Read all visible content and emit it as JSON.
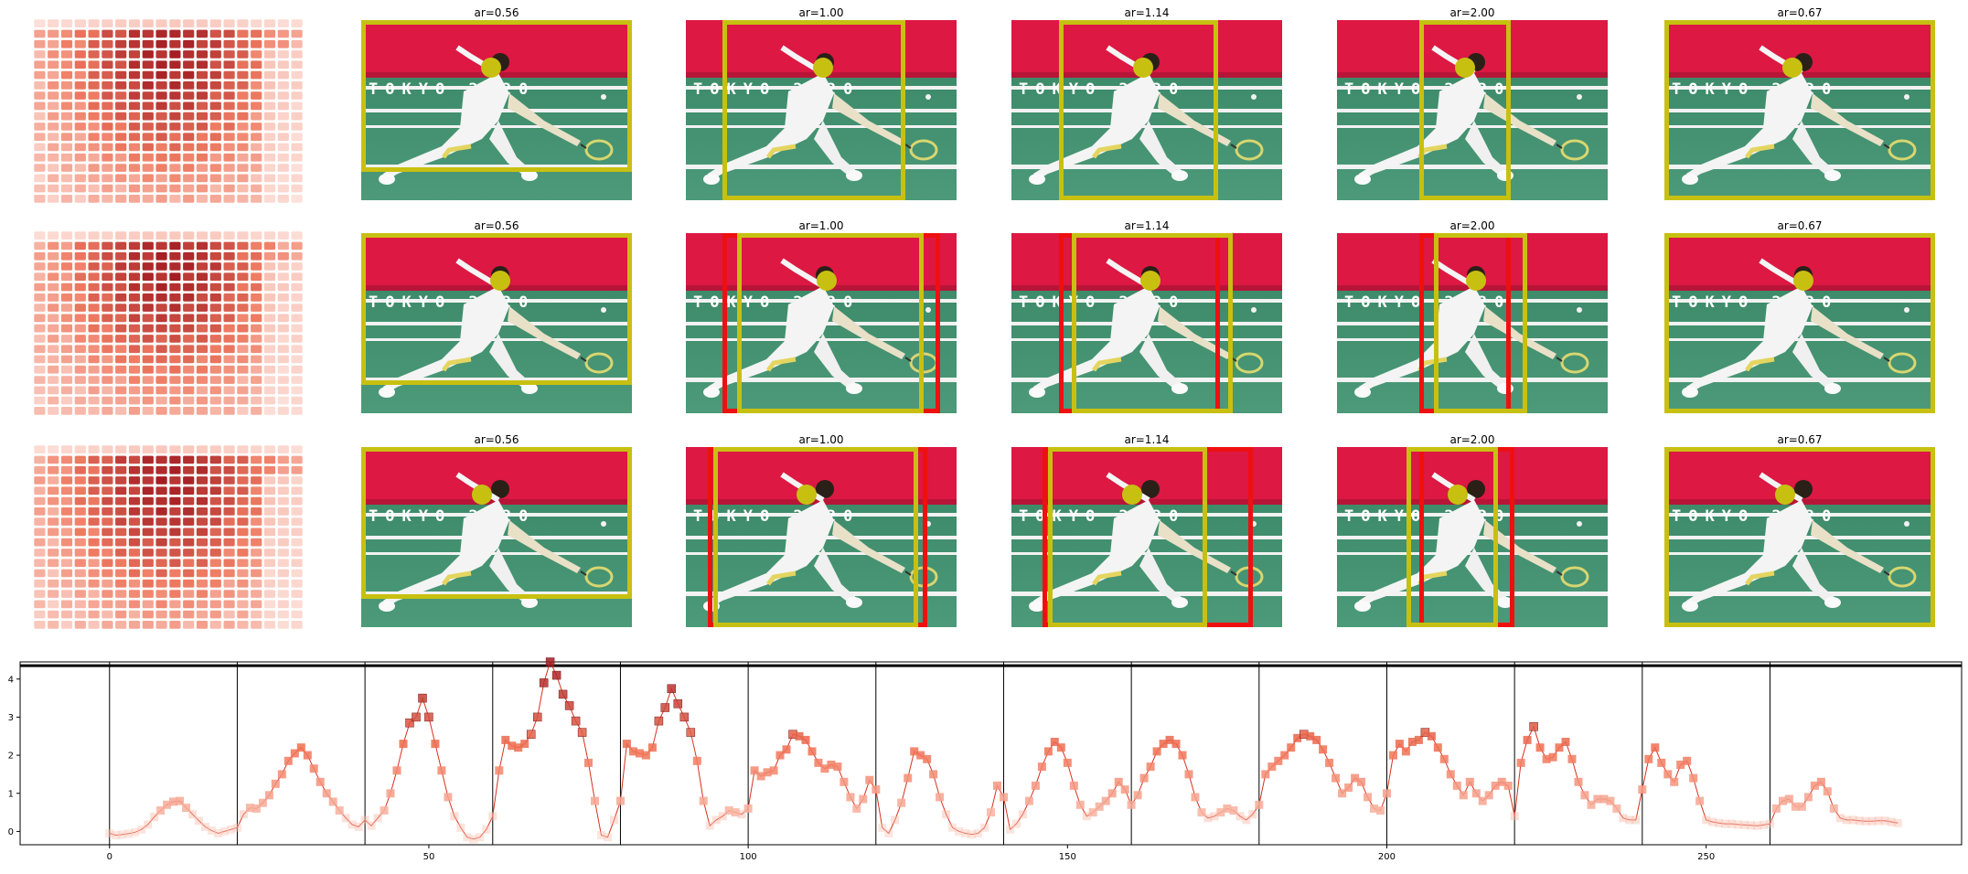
{
  "rows": [
    {
      "row": 1,
      "panels": [
        {
          "title": "ar=0.56"
        },
        {
          "title": "ar=1.00"
        },
        {
          "title": "ar=1.14"
        },
        {
          "title": "ar=2.00"
        },
        {
          "title": "ar=0.67"
        }
      ]
    },
    {
      "row": 2,
      "panels": [
        {
          "title": "ar=0.56"
        },
        {
          "title": "ar=1.00"
        },
        {
          "title": "ar=1.14"
        },
        {
          "title": "ar=2.00"
        },
        {
          "title": "ar=0.67"
        }
      ]
    },
    {
      "row": 3,
      "panels": [
        {
          "title": "ar=0.56"
        },
        {
          "title": "ar=1.00"
        },
        {
          "title": "ar=1.14"
        },
        {
          "title": "ar=2.00"
        },
        {
          "title": "ar=0.67"
        }
      ]
    }
  ],
  "photo": {
    "banner_text": "TOKYO 2020"
  },
  "colors": {
    "box_yellow": "#c8c011",
    "box_red": "#ee1010",
    "series_line": "#d9301e",
    "heat_dark": "#a31c22",
    "heat_light": "#fde5df"
  },
  "chart_data": {
    "type": "line",
    "title": "",
    "xlabel": "",
    "ylabel": "",
    "xlim": [
      -14,
      290
    ],
    "ylim": [
      -0.35,
      4.45
    ],
    "xticks": [
      "0",
      "50",
      "100",
      "150",
      "200",
      "250"
    ],
    "yticks": [
      "0",
      "1",
      "2",
      "3",
      "4"
    ],
    "hline_y": 4.35,
    "vlines_x": [
      0,
      20,
      40,
      60,
      80,
      100,
      120,
      140,
      160,
      180,
      200,
      220,
      240,
      260
    ],
    "legend": "none",
    "grid": false,
    "series": [
      {
        "points": [
          [
            0,
            -0.05
          ],
          [
            1,
            -0.1
          ],
          [
            2,
            -0.08
          ],
          [
            3,
            -0.06
          ],
          [
            4,
            -0.02
          ],
          [
            5,
            0.05
          ],
          [
            6,
            0.18
          ],
          [
            7,
            0.38
          ],
          [
            8,
            0.55
          ],
          [
            9,
            0.7
          ],
          [
            10,
            0.78
          ],
          [
            11,
            0.8
          ],
          [
            12,
            0.62
          ],
          [
            13,
            0.45
          ],
          [
            14,
            0.28
          ],
          [
            15,
            0.12
          ],
          [
            16,
            0.02
          ],
          [
            17,
            -0.05
          ],
          [
            18,
            0.0
          ],
          [
            19,
            0.05
          ],
          [
            20,
            0.1
          ],
          [
            21,
            0.45
          ],
          [
            22,
            0.62
          ],
          [
            23,
            0.6
          ],
          [
            24,
            0.75
          ],
          [
            25,
            0.95
          ],
          [
            26,
            1.25
          ],
          [
            27,
            1.5
          ],
          [
            28,
            1.85
          ],
          [
            29,
            2.05
          ],
          [
            30,
            2.2
          ],
          [
            31,
            2.0
          ],
          [
            32,
            1.65
          ],
          [
            33,
            1.3
          ],
          [
            34,
            1.0
          ],
          [
            35,
            0.78
          ],
          [
            36,
            0.55
          ],
          [
            37,
            0.35
          ],
          [
            38,
            0.18
          ],
          [
            39,
            0.12
          ],
          [
            40,
            0.3
          ],
          [
            41,
            0.15
          ],
          [
            42,
            0.35
          ],
          [
            43,
            0.55
          ],
          [
            44,
            1.0
          ],
          [
            45,
            1.6
          ],
          [
            46,
            2.3
          ],
          [
            47,
            2.85
          ],
          [
            48,
            3.0
          ],
          [
            49,
            3.5
          ],
          [
            50,
            3.0
          ],
          [
            51,
            2.3
          ],
          [
            52,
            1.6
          ],
          [
            53,
            0.9
          ],
          [
            54,
            0.4
          ],
          [
            55,
            0.1
          ],
          [
            56,
            -0.15
          ],
          [
            57,
            -0.2
          ],
          [
            58,
            -0.15
          ],
          [
            59,
            0.05
          ],
          [
            60,
            0.4
          ],
          [
            61,
            1.6
          ],
          [
            62,
            2.4
          ],
          [
            63,
            2.25
          ],
          [
            64,
            2.2
          ],
          [
            65,
            2.3
          ],
          [
            66,
            2.55
          ],
          [
            67,
            3.0
          ],
          [
            68,
            3.9
          ],
          [
            69,
            4.45
          ],
          [
            70,
            4.1
          ],
          [
            71,
            3.6
          ],
          [
            72,
            3.3
          ],
          [
            73,
            2.9
          ],
          [
            74,
            2.6
          ],
          [
            75,
            1.8
          ],
          [
            76,
            0.8
          ],
          [
            77,
            -0.1
          ],
          [
            78,
            -0.15
          ],
          [
            79,
            0.3
          ],
          [
            80,
            0.8
          ],
          [
            81,
            2.3
          ],
          [
            82,
            2.1
          ],
          [
            83,
            2.05
          ],
          [
            84,
            2.0
          ],
          [
            85,
            2.2
          ],
          [
            86,
            2.9
          ],
          [
            87,
            3.25
          ],
          [
            88,
            3.75
          ],
          [
            89,
            3.35
          ],
          [
            90,
            3.0
          ],
          [
            91,
            2.6
          ],
          [
            92,
            1.85
          ],
          [
            93,
            0.8
          ],
          [
            94,
            0.15
          ],
          [
            95,
            0.3
          ],
          [
            96,
            0.4
          ],
          [
            97,
            0.55
          ],
          [
            98,
            0.5
          ],
          [
            99,
            0.45
          ],
          [
            100,
            0.6
          ],
          [
            101,
            1.6
          ],
          [
            102,
            1.45
          ],
          [
            103,
            1.55
          ],
          [
            104,
            1.6
          ],
          [
            105,
            2.0
          ],
          [
            106,
            2.15
          ],
          [
            107,
            2.55
          ],
          [
            108,
            2.5
          ],
          [
            109,
            2.4
          ],
          [
            110,
            2.1
          ],
          [
            111,
            1.8
          ],
          [
            112,
            1.65
          ],
          [
            113,
            1.75
          ],
          [
            114,
            1.7
          ],
          [
            115,
            1.3
          ],
          [
            116,
            0.9
          ],
          [
            117,
            0.6
          ],
          [
            118,
            0.85
          ],
          [
            119,
            1.35
          ],
          [
            120,
            1.1
          ],
          [
            121,
            0.1
          ],
          [
            122,
            -0.05
          ],
          [
            123,
            0.3
          ],
          [
            124,
            0.75
          ],
          [
            125,
            1.4
          ],
          [
            126,
            2.1
          ],
          [
            127,
            2.0
          ],
          [
            128,
            1.9
          ],
          [
            129,
            1.5
          ],
          [
            130,
            0.9
          ],
          [
            131,
            0.45
          ],
          [
            132,
            0.1
          ],
          [
            133,
            0.0
          ],
          [
            134,
            -0.05
          ],
          [
            135,
            -0.08
          ],
          [
            136,
            -0.05
          ],
          [
            137,
            0.1
          ],
          [
            138,
            0.5
          ],
          [
            139,
            1.2
          ],
          [
            140,
            0.9
          ],
          [
            141,
            0.05
          ],
          [
            142,
            0.2
          ],
          [
            143,
            0.45
          ],
          [
            144,
            0.8
          ],
          [
            145,
            1.2
          ],
          [
            146,
            1.7
          ],
          [
            147,
            2.1
          ],
          [
            148,
            2.35
          ],
          [
            149,
            2.2
          ],
          [
            150,
            1.8
          ],
          [
            151,
            1.2
          ],
          [
            152,
            0.7
          ],
          [
            153,
            0.4
          ],
          [
            154,
            0.5
          ],
          [
            155,
            0.65
          ],
          [
            156,
            0.8
          ],
          [
            157,
            1.0
          ],
          [
            158,
            1.3
          ],
          [
            159,
            1.1
          ],
          [
            160,
            0.7
          ],
          [
            161,
            0.95
          ],
          [
            162,
            1.4
          ],
          [
            163,
            1.7
          ],
          [
            164,
            2.1
          ],
          [
            165,
            2.3
          ],
          [
            166,
            2.4
          ],
          [
            167,
            2.3
          ],
          [
            168,
            2.0
          ],
          [
            169,
            1.5
          ],
          [
            170,
            0.9
          ],
          [
            171,
            0.5
          ],
          [
            172,
            0.35
          ],
          [
            173,
            0.4
          ],
          [
            174,
            0.5
          ],
          [
            175,
            0.6
          ],
          [
            176,
            0.55
          ],
          [
            177,
            0.4
          ],
          [
            178,
            0.3
          ],
          [
            179,
            0.45
          ],
          [
            180,
            0.7
          ],
          [
            181,
            1.5
          ],
          [
            182,
            1.7
          ],
          [
            183,
            1.85
          ],
          [
            184,
            2.0
          ],
          [
            185,
            2.2
          ],
          [
            186,
            2.45
          ],
          [
            187,
            2.55
          ],
          [
            188,
            2.5
          ],
          [
            189,
            2.4
          ],
          [
            190,
            2.15
          ],
          [
            191,
            1.8
          ],
          [
            192,
            1.4
          ],
          [
            193,
            1.0
          ],
          [
            194,
            1.15
          ],
          [
            195,
            1.4
          ],
          [
            196,
            1.3
          ],
          [
            197,
            0.9
          ],
          [
            198,
            0.6
          ],
          [
            199,
            0.55
          ],
          [
            200,
            1.0
          ],
          [
            201,
            2.0
          ],
          [
            202,
            2.3
          ],
          [
            203,
            2.1
          ],
          [
            204,
            2.35
          ],
          [
            205,
            2.4
          ],
          [
            206,
            2.6
          ],
          [
            207,
            2.5
          ],
          [
            208,
            2.2
          ],
          [
            209,
            1.9
          ],
          [
            210,
            1.5
          ],
          [
            211,
            1.2
          ],
          [
            212,
            0.95
          ],
          [
            213,
            1.3
          ],
          [
            214,
            1.0
          ],
          [
            215,
            0.8
          ],
          [
            216,
            0.95
          ],
          [
            217,
            1.2
          ],
          [
            218,
            1.3
          ],
          [
            219,
            1.2
          ],
          [
            220,
            0.4
          ],
          [
            221,
            1.8
          ],
          [
            222,
            2.4
          ],
          [
            223,
            2.75
          ],
          [
            224,
            2.2
          ],
          [
            225,
            1.9
          ],
          [
            226,
            1.95
          ],
          [
            227,
            2.2
          ],
          [
            228,
            2.35
          ],
          [
            229,
            1.9
          ],
          [
            230,
            1.3
          ],
          [
            231,
            0.95
          ],
          [
            232,
            0.7
          ],
          [
            233,
            0.85
          ],
          [
            234,
            0.85
          ],
          [
            235,
            0.8
          ],
          [
            236,
            0.6
          ],
          [
            237,
            0.35
          ],
          [
            238,
            0.3
          ],
          [
            239,
            0.3
          ],
          [
            240,
            1.1
          ],
          [
            241,
            1.9
          ],
          [
            242,
            2.2
          ],
          [
            243,
            1.8
          ],
          [
            244,
            1.5
          ],
          [
            245,
            1.3
          ],
          [
            246,
            1.75
          ],
          [
            247,
            1.85
          ],
          [
            248,
            1.4
          ],
          [
            249,
            0.8
          ],
          [
            250,
            0.3
          ],
          [
            251,
            0.25
          ],
          [
            252,
            0.22
          ],
          [
            253,
            0.2
          ],
          [
            254,
            0.2
          ],
          [
            255,
            0.18
          ],
          [
            256,
            0.17
          ],
          [
            257,
            0.16
          ],
          [
            258,
            0.15
          ],
          [
            259,
            0.17
          ],
          [
            260,
            0.2
          ],
          [
            261,
            0.6
          ],
          [
            262,
            0.8
          ],
          [
            263,
            0.85
          ],
          [
            264,
            0.65
          ],
          [
            265,
            0.65
          ],
          [
            266,
            0.9
          ],
          [
            267,
            1.2
          ],
          [
            268,
            1.3
          ],
          [
            269,
            1.05
          ],
          [
            270,
            0.6
          ],
          [
            271,
            0.35
          ],
          [
            272,
            0.3
          ],
          [
            273,
            0.3
          ],
          [
            274,
            0.28
          ],
          [
            275,
            0.27
          ],
          [
            276,
            0.27
          ],
          [
            277,
            0.28
          ],
          [
            278,
            0.28
          ],
          [
            279,
            0.25
          ],
          [
            280,
            0.22
          ]
        ]
      }
    ]
  }
}
